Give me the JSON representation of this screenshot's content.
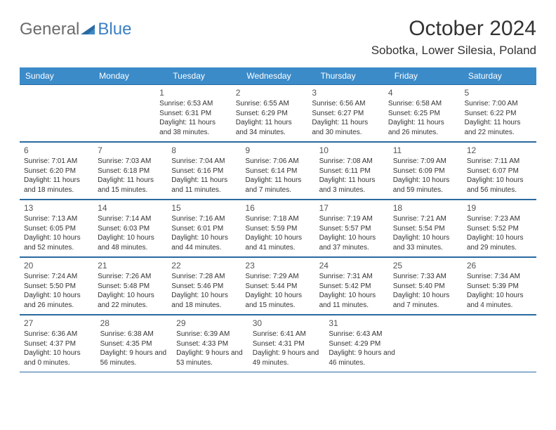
{
  "logo": {
    "text_gray": "General",
    "text_blue": "Blue"
  },
  "title": "October 2024",
  "location": "Sobotka, Lower Silesia, Poland",
  "colors": {
    "header_bg": "#3b8bc9",
    "header_text": "#ffffff",
    "border": "#2a6aa0",
    "body_text": "#333333",
    "logo_gray": "#6b6b6b",
    "logo_blue": "#3b7fc4",
    "background": "#ffffff"
  },
  "daysOfWeek": [
    "Sunday",
    "Monday",
    "Tuesday",
    "Wednesday",
    "Thursday",
    "Friday",
    "Saturday"
  ],
  "weeks": [
    [
      null,
      null,
      {
        "n": "1",
        "sr": "Sunrise: 6:53 AM",
        "ss": "Sunset: 6:31 PM",
        "dl": "Daylight: 11 hours and 38 minutes."
      },
      {
        "n": "2",
        "sr": "Sunrise: 6:55 AM",
        "ss": "Sunset: 6:29 PM",
        "dl": "Daylight: 11 hours and 34 minutes."
      },
      {
        "n": "3",
        "sr": "Sunrise: 6:56 AM",
        "ss": "Sunset: 6:27 PM",
        "dl": "Daylight: 11 hours and 30 minutes."
      },
      {
        "n": "4",
        "sr": "Sunrise: 6:58 AM",
        "ss": "Sunset: 6:25 PM",
        "dl": "Daylight: 11 hours and 26 minutes."
      },
      {
        "n": "5",
        "sr": "Sunrise: 7:00 AM",
        "ss": "Sunset: 6:22 PM",
        "dl": "Daylight: 11 hours and 22 minutes."
      }
    ],
    [
      {
        "n": "6",
        "sr": "Sunrise: 7:01 AM",
        "ss": "Sunset: 6:20 PM",
        "dl": "Daylight: 11 hours and 18 minutes."
      },
      {
        "n": "7",
        "sr": "Sunrise: 7:03 AM",
        "ss": "Sunset: 6:18 PM",
        "dl": "Daylight: 11 hours and 15 minutes."
      },
      {
        "n": "8",
        "sr": "Sunrise: 7:04 AM",
        "ss": "Sunset: 6:16 PM",
        "dl": "Daylight: 11 hours and 11 minutes."
      },
      {
        "n": "9",
        "sr": "Sunrise: 7:06 AM",
        "ss": "Sunset: 6:14 PM",
        "dl": "Daylight: 11 hours and 7 minutes."
      },
      {
        "n": "10",
        "sr": "Sunrise: 7:08 AM",
        "ss": "Sunset: 6:11 PM",
        "dl": "Daylight: 11 hours and 3 minutes."
      },
      {
        "n": "11",
        "sr": "Sunrise: 7:09 AM",
        "ss": "Sunset: 6:09 PM",
        "dl": "Daylight: 10 hours and 59 minutes."
      },
      {
        "n": "12",
        "sr": "Sunrise: 7:11 AM",
        "ss": "Sunset: 6:07 PM",
        "dl": "Daylight: 10 hours and 56 minutes."
      }
    ],
    [
      {
        "n": "13",
        "sr": "Sunrise: 7:13 AM",
        "ss": "Sunset: 6:05 PM",
        "dl": "Daylight: 10 hours and 52 minutes."
      },
      {
        "n": "14",
        "sr": "Sunrise: 7:14 AM",
        "ss": "Sunset: 6:03 PM",
        "dl": "Daylight: 10 hours and 48 minutes."
      },
      {
        "n": "15",
        "sr": "Sunrise: 7:16 AM",
        "ss": "Sunset: 6:01 PM",
        "dl": "Daylight: 10 hours and 44 minutes."
      },
      {
        "n": "16",
        "sr": "Sunrise: 7:18 AM",
        "ss": "Sunset: 5:59 PM",
        "dl": "Daylight: 10 hours and 41 minutes."
      },
      {
        "n": "17",
        "sr": "Sunrise: 7:19 AM",
        "ss": "Sunset: 5:57 PM",
        "dl": "Daylight: 10 hours and 37 minutes."
      },
      {
        "n": "18",
        "sr": "Sunrise: 7:21 AM",
        "ss": "Sunset: 5:54 PM",
        "dl": "Daylight: 10 hours and 33 minutes."
      },
      {
        "n": "19",
        "sr": "Sunrise: 7:23 AM",
        "ss": "Sunset: 5:52 PM",
        "dl": "Daylight: 10 hours and 29 minutes."
      }
    ],
    [
      {
        "n": "20",
        "sr": "Sunrise: 7:24 AM",
        "ss": "Sunset: 5:50 PM",
        "dl": "Daylight: 10 hours and 26 minutes."
      },
      {
        "n": "21",
        "sr": "Sunrise: 7:26 AM",
        "ss": "Sunset: 5:48 PM",
        "dl": "Daylight: 10 hours and 22 minutes."
      },
      {
        "n": "22",
        "sr": "Sunrise: 7:28 AM",
        "ss": "Sunset: 5:46 PM",
        "dl": "Daylight: 10 hours and 18 minutes."
      },
      {
        "n": "23",
        "sr": "Sunrise: 7:29 AM",
        "ss": "Sunset: 5:44 PM",
        "dl": "Daylight: 10 hours and 15 minutes."
      },
      {
        "n": "24",
        "sr": "Sunrise: 7:31 AM",
        "ss": "Sunset: 5:42 PM",
        "dl": "Daylight: 10 hours and 11 minutes."
      },
      {
        "n": "25",
        "sr": "Sunrise: 7:33 AM",
        "ss": "Sunset: 5:40 PM",
        "dl": "Daylight: 10 hours and 7 minutes."
      },
      {
        "n": "26",
        "sr": "Sunrise: 7:34 AM",
        "ss": "Sunset: 5:39 PM",
        "dl": "Daylight: 10 hours and 4 minutes."
      }
    ],
    [
      {
        "n": "27",
        "sr": "Sunrise: 6:36 AM",
        "ss": "Sunset: 4:37 PM",
        "dl": "Daylight: 10 hours and 0 minutes."
      },
      {
        "n": "28",
        "sr": "Sunrise: 6:38 AM",
        "ss": "Sunset: 4:35 PM",
        "dl": "Daylight: 9 hours and 56 minutes."
      },
      {
        "n": "29",
        "sr": "Sunrise: 6:39 AM",
        "ss": "Sunset: 4:33 PM",
        "dl": "Daylight: 9 hours and 53 minutes."
      },
      {
        "n": "30",
        "sr": "Sunrise: 6:41 AM",
        "ss": "Sunset: 4:31 PM",
        "dl": "Daylight: 9 hours and 49 minutes."
      },
      {
        "n": "31",
        "sr": "Sunrise: 6:43 AM",
        "ss": "Sunset: 4:29 PM",
        "dl": "Daylight: 9 hours and 46 minutes."
      },
      null,
      null
    ]
  ]
}
